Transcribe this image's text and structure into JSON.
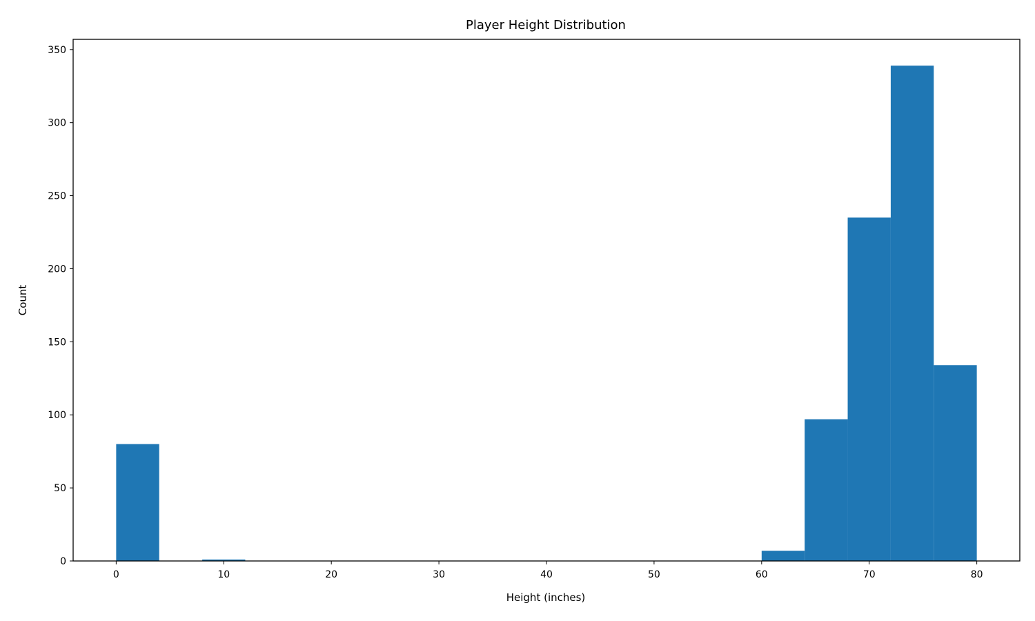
{
  "chart_data": {
    "type": "bar",
    "title": "Player Height Distribution",
    "xlabel": "Height (inches)",
    "ylabel": "Count",
    "xlim": [
      -4,
      84
    ],
    "ylim": [
      0,
      357
    ],
    "xticks": [
      0,
      10,
      20,
      30,
      40,
      50,
      60,
      70,
      80
    ],
    "yticks": [
      0,
      50,
      100,
      150,
      200,
      250,
      300,
      350
    ],
    "grid": false,
    "bar_color": "#1f77b4",
    "bins": [
      {
        "start": 0,
        "end": 4,
        "count": 80
      },
      {
        "start": 4,
        "end": 8,
        "count": 0
      },
      {
        "start": 8,
        "end": 12,
        "count": 1
      },
      {
        "start": 12,
        "end": 16,
        "count": 0
      },
      {
        "start": 16,
        "end": 20,
        "count": 0
      },
      {
        "start": 20,
        "end": 24,
        "count": 0
      },
      {
        "start": 24,
        "end": 28,
        "count": 0
      },
      {
        "start": 28,
        "end": 32,
        "count": 0
      },
      {
        "start": 32,
        "end": 36,
        "count": 0
      },
      {
        "start": 36,
        "end": 40,
        "count": 0
      },
      {
        "start": 40,
        "end": 44,
        "count": 0
      },
      {
        "start": 44,
        "end": 48,
        "count": 0
      },
      {
        "start": 48,
        "end": 52,
        "count": 0
      },
      {
        "start": 52,
        "end": 56,
        "count": 0
      },
      {
        "start": 56,
        "end": 60,
        "count": 0
      },
      {
        "start": 60,
        "end": 64,
        "count": 7
      },
      {
        "start": 64,
        "end": 68,
        "count": 97
      },
      {
        "start": 68,
        "end": 72,
        "count": 235
      },
      {
        "start": 72,
        "end": 76,
        "count": 339
      },
      {
        "start": 76,
        "end": 80,
        "count": 134
      }
    ]
  }
}
